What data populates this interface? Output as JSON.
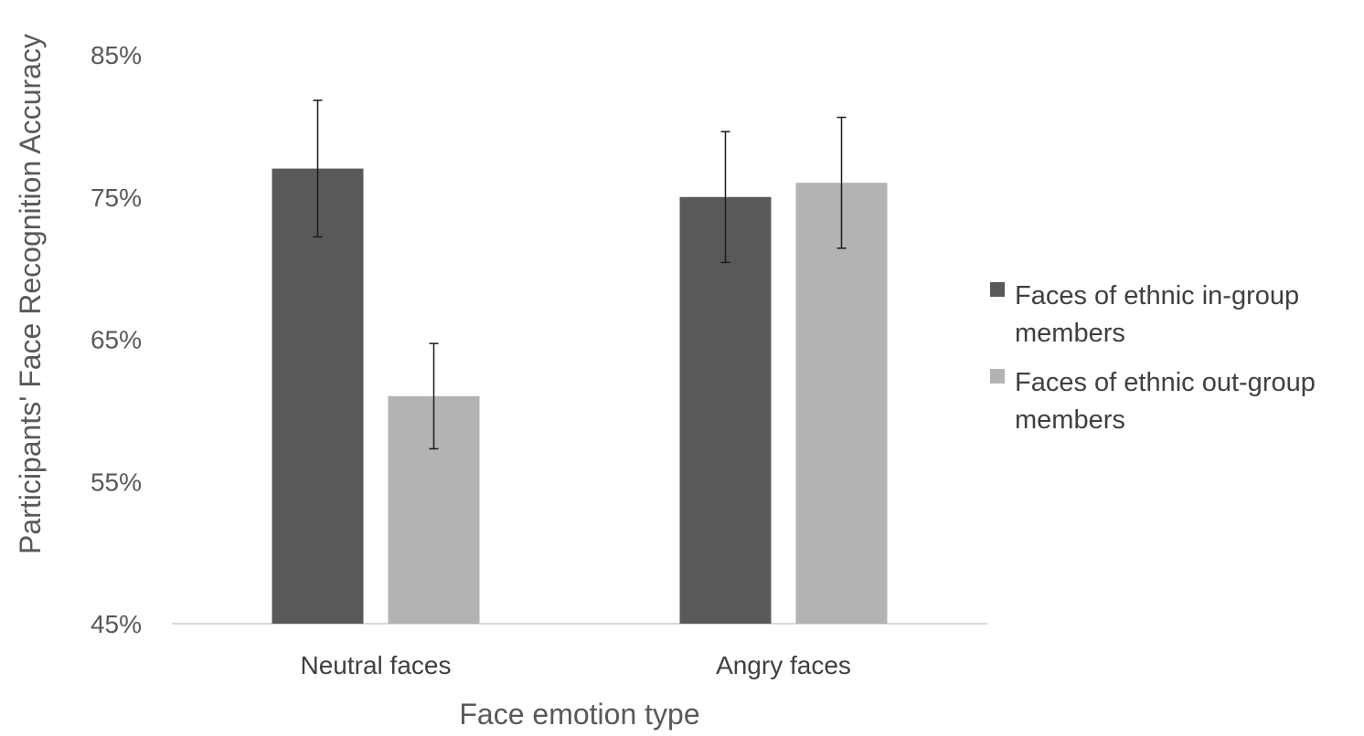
{
  "chart_data": {
    "type": "bar",
    "title": "",
    "xlabel": "Face emotion type",
    "ylabel": "Participants' Face Recognition Accuracy",
    "categories": [
      "Neutral faces",
      "Angry faces"
    ],
    "series": [
      {
        "name": "Faces of ethnic in-group members",
        "legend_lines": [
          "Faces of ethnic in-group",
          "members"
        ],
        "color": "#595959",
        "values": [
          77,
          75
        ],
        "error": [
          4.8,
          4.6
        ]
      },
      {
        "name": "Faces of ethnic out-group members",
        "legend_lines": [
          "Faces of ethnic out-group",
          "members"
        ],
        "color": "#b3b3b3",
        "values": [
          61,
          76
        ],
        "error": [
          3.7,
          4.6
        ]
      }
    ],
    "yticks": [
      "85%",
      "75%",
      "65%",
      "55%",
      "45%"
    ],
    "ytick_values": [
      85,
      75,
      65,
      55,
      45
    ],
    "ylim": [
      45,
      85
    ],
    "grid": false,
    "legend_position": "right"
  }
}
